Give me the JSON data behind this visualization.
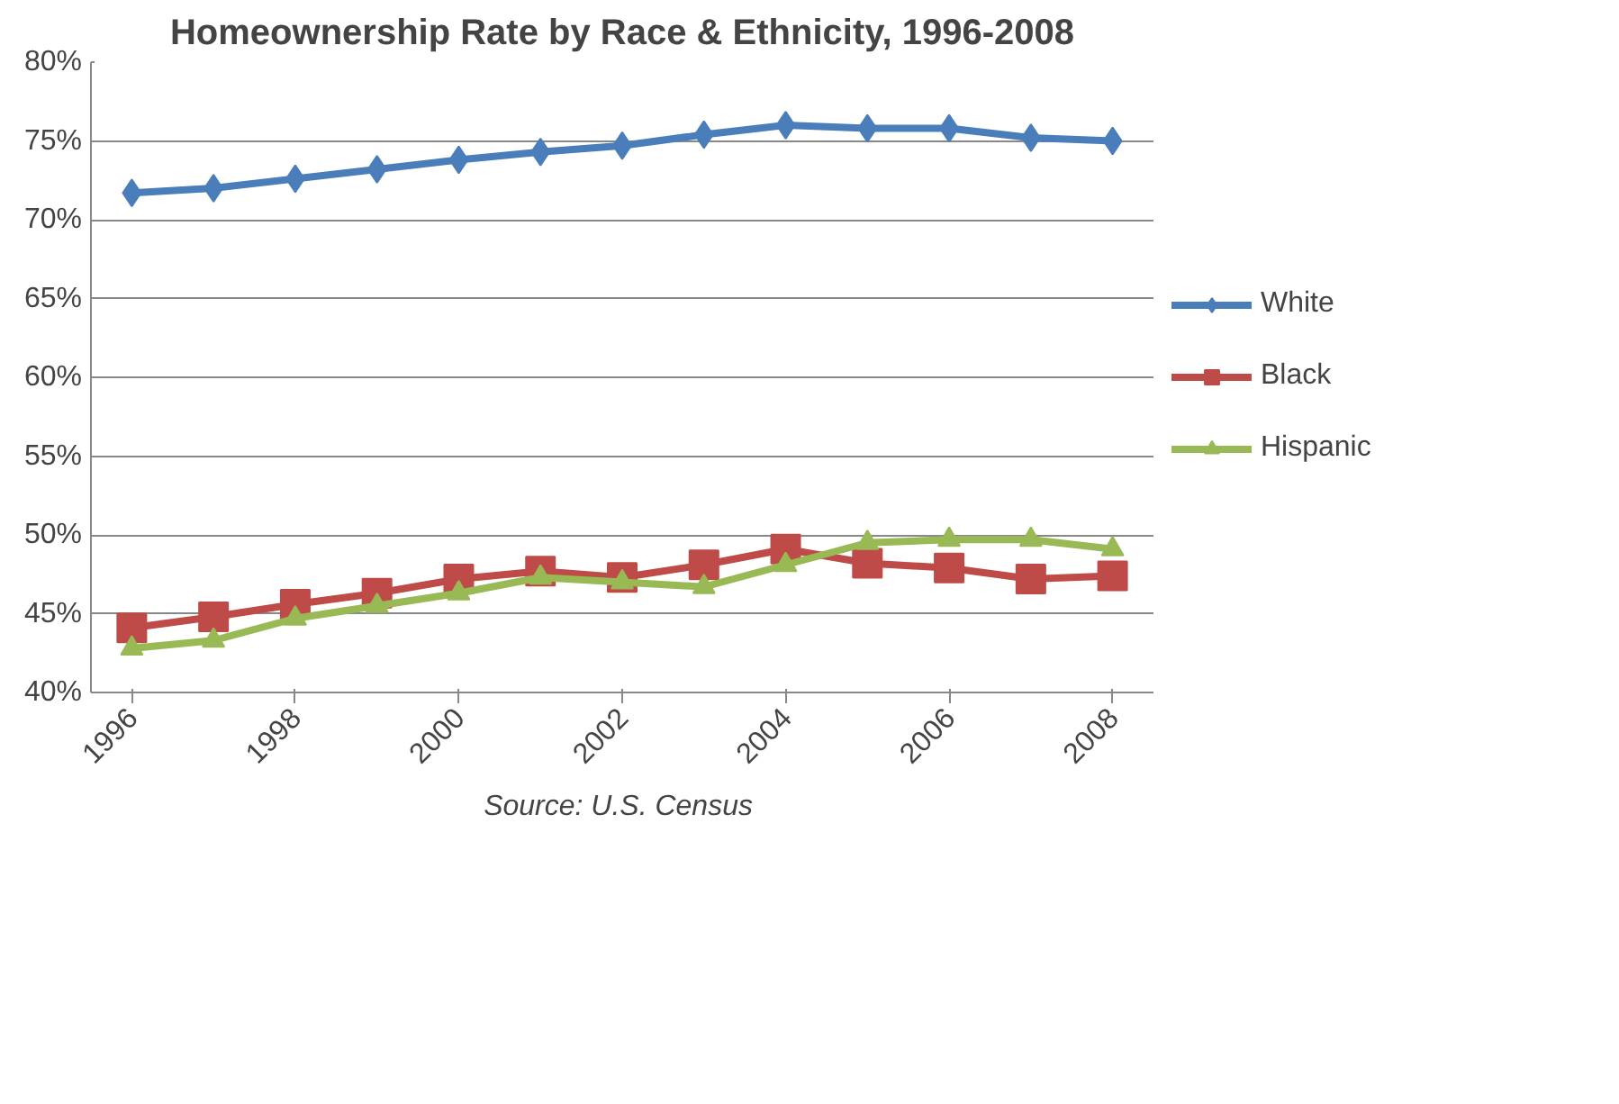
{
  "chart_data": {
    "type": "line",
    "title": "Homeownership Rate by Race & Ethnicity, 1996-2008",
    "x": [
      1996,
      1997,
      1998,
      1999,
      2000,
      2001,
      2002,
      2003,
      2004,
      2005,
      2006,
      2007,
      2008
    ],
    "series": [
      {
        "name": "White",
        "color": "#4a7ebb",
        "marker": "diamond",
        "values": [
          71.7,
          72.0,
          72.6,
          73.2,
          73.8,
          74.3,
          74.7,
          75.4,
          76.0,
          75.8,
          75.8,
          75.2,
          75.0
        ]
      },
      {
        "name": "Black",
        "color": "#be4b48",
        "marker": "square",
        "values": [
          44.1,
          44.8,
          45.6,
          46.3,
          47.2,
          47.7,
          47.3,
          48.1,
          49.1,
          48.2,
          47.9,
          47.2,
          47.4
        ]
      },
      {
        "name": "Hispanic",
        "color": "#98b954",
        "marker": "triangle",
        "values": [
          42.8,
          43.3,
          44.7,
          45.5,
          46.3,
          47.3,
          47.0,
          46.7,
          48.1,
          49.5,
          49.7,
          49.7,
          49.1
        ]
      }
    ],
    "xlim": [
      1995.5,
      2008.5
    ],
    "xticks": [
      1996,
      1998,
      2000,
      2002,
      2004,
      2006,
      2008
    ],
    "ylim": [
      40,
      80
    ],
    "yticks": [
      {
        "value": 40,
        "label": "40%"
      },
      {
        "value": 45,
        "label": "45%"
      },
      {
        "value": 50,
        "label": "50%"
      },
      {
        "value": 55,
        "label": "55%"
      },
      {
        "value": 60,
        "label": "60%"
      },
      {
        "value": 65,
        "label": "65%"
      },
      {
        "value": 70,
        "label": "70%"
      },
      {
        "value": 75,
        "label": "75%"
      },
      {
        "value": 80,
        "label": "80%"
      }
    ],
    "grid": "y",
    "legend": "right",
    "line_style": "solid",
    "annotations": [
      "Source:  U.S. Census"
    ]
  }
}
